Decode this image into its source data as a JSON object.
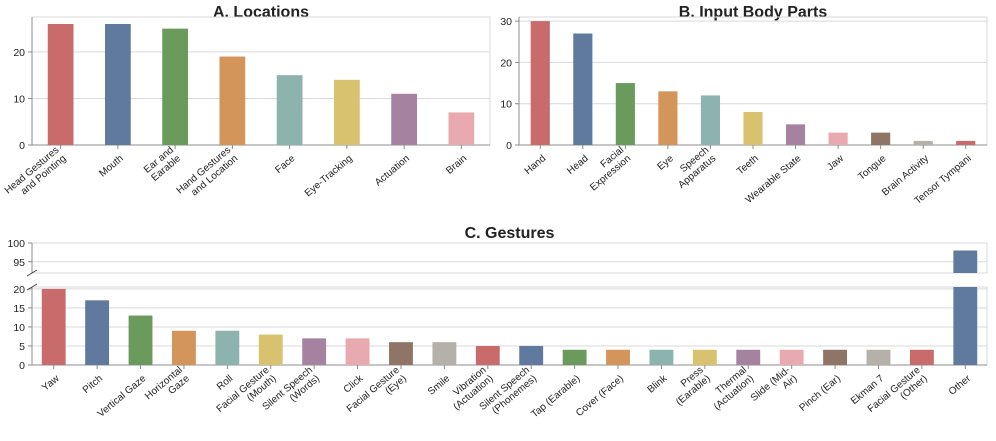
{
  "palette": [
    "#c96b6b",
    "#5f7a9e",
    "#6b9a5d",
    "#d4955a",
    "#8cb3ae",
    "#d9c26f",
    "#a583a0",
    "#e8a9b0",
    "#8f7566",
    "#b6b0aa"
  ],
  "chart_data": [
    {
      "type": "bar",
      "title": "A. Locations",
      "categories": [
        "Head Gestures\nand Pointing",
        "Mouth",
        "Ear and\nEarable",
        "Hand Gestures\nand Location",
        "Face",
        "Eye-Tracking",
        "Actuation",
        "Brain"
      ],
      "values": [
        26,
        26,
        25,
        19,
        15,
        14,
        11,
        7
      ],
      "yticks": [
        0,
        10,
        20
      ],
      "ylim": [
        0,
        27.5
      ],
      "grid": true
    },
    {
      "type": "bar",
      "title": "B. Input Body Parts",
      "categories": [
        "Hand",
        "Head",
        "Facial\nExpression",
        "Eye",
        "Speech\nApparatus",
        "Teeth",
        "Wearable State",
        "Jaw",
        "Tongue",
        "Brain Activity",
        "Tensor Tympani"
      ],
      "values": [
        30,
        27,
        15,
        13,
        12,
        8,
        5,
        3,
        3,
        1,
        1
      ],
      "yticks": [
        0,
        10,
        20,
        30
      ],
      "ylim": [
        0,
        31
      ],
      "grid": true
    },
    {
      "type": "bar",
      "title": "C. Gestures",
      "broken_axis": true,
      "categories": [
        "Yaw",
        "Pitch",
        "Vertical Gaze",
        "Horizontal\nGaze",
        "Roll",
        "Facial Gesture\n(Mouth)",
        "Silent Speech\n(Words)",
        "Click",
        "Facial Gesture\n(Eye)",
        "Smile",
        "Vibration\n(Actuation)",
        "Silent Speech\n(Phonemes)",
        "Tap (Earable)",
        "Cover (Face)",
        "Blink",
        "Press\n(Earable)",
        "Thermal\n(Actuation)",
        "Slide (Mid-\nAir)",
        "Pinch (Ear)",
        "Ekman 7",
        "Facial Gesture\n(Other)",
        "Other"
      ],
      "values": [
        20,
        17,
        13,
        9,
        9,
        8,
        7,
        7,
        6,
        6,
        5,
        5,
        4,
        4,
        4,
        4,
        4,
        4,
        4,
        4,
        4,
        98
      ],
      "lower_ylim": [
        0,
        20.5
      ],
      "lower_yticks": [
        0,
        5,
        10,
        15,
        20
      ],
      "upper_ylim": [
        92,
        100
      ],
      "upper_yticks": [
        95,
        100
      ],
      "grid": true
    }
  ]
}
